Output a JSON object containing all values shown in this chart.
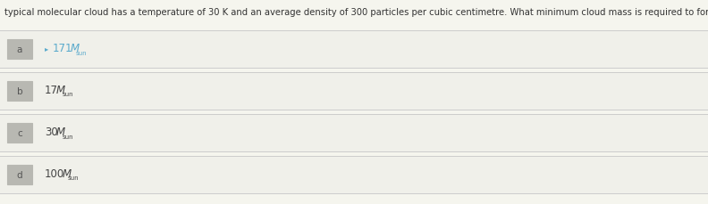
{
  "question": "typical molecular cloud has a temperature of 30 K and an average density of 300 particles per cubic centimetre. What minimum cloud mass is required to form stars?",
  "options": [
    {
      "label": "a",
      "num": "171",
      "main": "M",
      "sub": "sun",
      "selected": true
    },
    {
      "label": "b",
      "num": "17",
      "main": "M",
      "sub": "sun",
      "selected": false
    },
    {
      "label": "c",
      "num": "30",
      "main": "M",
      "sub": "sun",
      "selected": false
    },
    {
      "label": "d",
      "num": "100",
      "main": "M",
      "sub": "sun",
      "selected": false
    }
  ],
  "bg_color": "#f5f5ee",
  "row_bg_color": "#f0f0ea",
  "box_color": "#b8b8b2",
  "box_text_color": "#555555",
  "answer_color": "#5aaacc",
  "option_text_color": "#444444",
  "question_color": "#333333",
  "line_color": "#cccccc",
  "gap_color": "#e0e0da",
  "selected_option": "a",
  "question_fontsize": 7.2,
  "option_fontsize": 8.5,
  "label_fontsize": 7.5,
  "sub_fontsize": 5.0
}
